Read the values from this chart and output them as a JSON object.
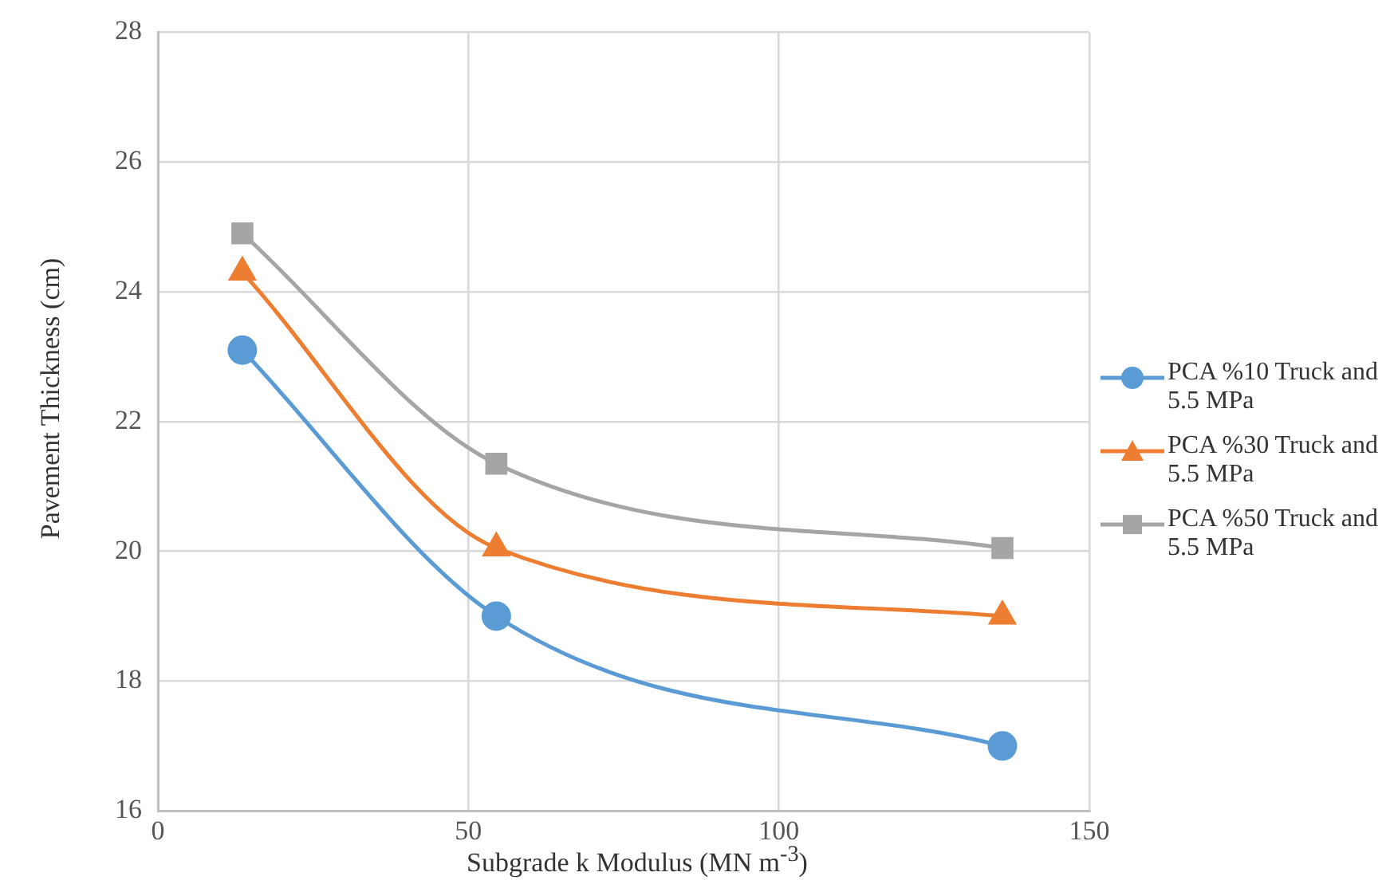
{
  "chart_data": {
    "type": "line",
    "xlabel": "Subgrade k Modulus (MN m$^{-3}$)",
    "ylabel": "Pavement Thickness (cm)",
    "x": [
      13.6,
      54.5,
      136
    ],
    "series": [
      {
        "name": "PCA %10 Truck and 5.5 MPa",
        "color": "#5b9bd5",
        "marker": "circle",
        "values": [
          23.1,
          19.0,
          17.0
        ]
      },
      {
        "name": "PCA %30 Truck and 5.5 MPa",
        "color": "#ed7d31",
        "marker": "triangle",
        "values": [
          24.3,
          20.05,
          19.0
        ]
      },
      {
        "name": "PCA %50 Truck and 5.5 MPa",
        "color": "#a5a5a5",
        "marker": "square",
        "values": [
          24.9,
          21.35,
          20.05
        ]
      }
    ],
    "xlim": [
      0,
      150
    ],
    "xticks": [
      0,
      50,
      100,
      150
    ],
    "ylim": [
      16,
      28
    ],
    "yticks": [
      16,
      18,
      20,
      22,
      24,
      26,
      28
    ],
    "grid": true,
    "legend": "right"
  }
}
